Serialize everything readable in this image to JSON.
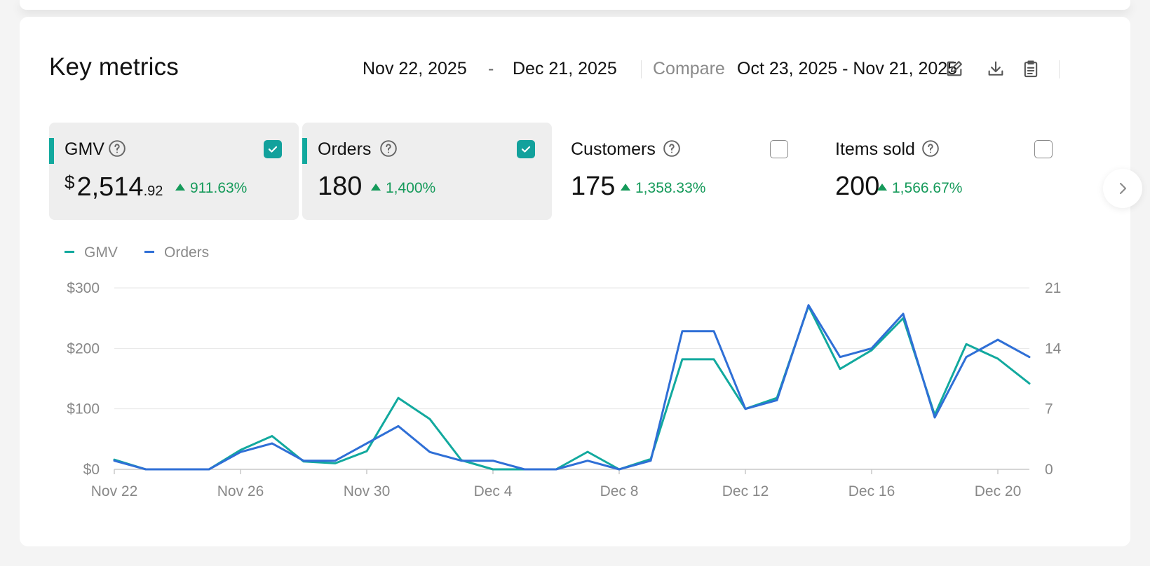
{
  "header": {
    "title": "Key metrics",
    "date_start": "Nov 22, 2025",
    "date_separator": "-",
    "date_end": "Dec 21, 2025",
    "compare_label": "Compare",
    "compare_range": "Oct 23, 2025 - Nov 21, 2025",
    "icons": [
      "edit-icon",
      "download-icon",
      "clipboard-icon"
    ]
  },
  "metrics": [
    {
      "label": "GMV",
      "currency": "$",
      "value": "2,514",
      "cents": ".92",
      "change": "911.63%",
      "checked": true
    },
    {
      "label": "Orders",
      "value": "180",
      "change": "1,400%",
      "checked": true
    },
    {
      "label": "Customers",
      "value": "175",
      "change": "1,358.33%",
      "checked": false
    },
    {
      "label": "Items sold",
      "value": "200",
      "change": "1,566.67%",
      "checked": false
    }
  ],
  "colors": {
    "gmv": "#12a99e",
    "orders": "#2f6fd6",
    "positive": "#159a5a",
    "accent": "#12a19c"
  },
  "chart_data": {
    "type": "line",
    "legend": [
      "GMV",
      "Orders"
    ],
    "legend_position": "top-left",
    "x": [
      "Nov 22",
      "Nov 23",
      "Nov 24",
      "Nov 25",
      "Nov 26",
      "Nov 27",
      "Nov 28",
      "Nov 29",
      "Nov 30",
      "Dec 1",
      "Dec 2",
      "Dec 3",
      "Dec 4",
      "Dec 5",
      "Dec 6",
      "Dec 7",
      "Dec 8",
      "Dec 9",
      "Dec 10",
      "Dec 11",
      "Dec 12",
      "Dec 13",
      "Dec 14",
      "Dec 15",
      "Dec 16",
      "Dec 17",
      "Dec 18",
      "Dec 19",
      "Dec 20",
      "Dec 21"
    ],
    "x_tick_labels": [
      "Nov 22",
      "Nov 26",
      "Nov 30",
      "Dec 4",
      "Dec 8",
      "Dec 12",
      "Dec 16",
      "Dec 20"
    ],
    "y_left_ticks": [
      "$0",
      "$100",
      "$200",
      "$300"
    ],
    "y_left_range": [
      0,
      300
    ],
    "y_right_ticks": [
      "0",
      "7",
      "14",
      "21"
    ],
    "y_right_range": [
      0,
      21
    ],
    "grid": true,
    "series": [
      {
        "name": "GMV",
        "axis": "left",
        "values": [
          16,
          0,
          0,
          0,
          32,
          55,
          13,
          10,
          30,
          118,
          83,
          15,
          0,
          0,
          0,
          29,
          0,
          17,
          182,
          182,
          100,
          118,
          270,
          166,
          197,
          250,
          90,
          207,
          183,
          142
        ]
      },
      {
        "name": "Orders",
        "axis": "right",
        "values": [
          1,
          0,
          0,
          0,
          2,
          3,
          1,
          1,
          3,
          5,
          2,
          1,
          1,
          0,
          0,
          1,
          0,
          1,
          16,
          16,
          7,
          8,
          19,
          13,
          14,
          18,
          6,
          13,
          15,
          13
        ]
      }
    ]
  }
}
